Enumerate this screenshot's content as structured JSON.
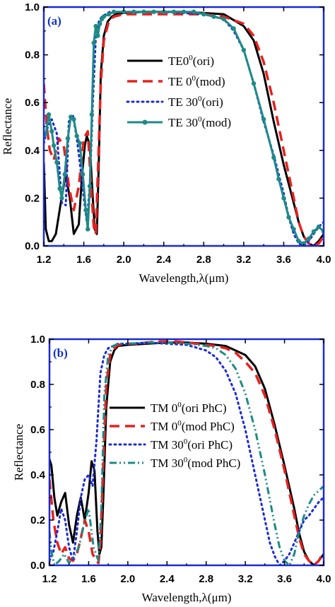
{
  "chart_data": [
    {
      "type": "line",
      "panel_label": "(a)",
      "xlabel": "Wavelength,λ(μm)",
      "ylabel": "Reflectance",
      "xlim": [
        1.2,
        4.0
      ],
      "ylim": [
        0.0,
        1.0
      ],
      "xticks": [
        "1.2",
        "1.6",
        "2.0",
        "2.4",
        "2.8",
        "3.2",
        "3.6",
        "4.0"
      ],
      "yticks": [
        "0.0",
        "0.2",
        "0.4",
        "0.6",
        "0.8",
        "1.0"
      ],
      "grid": false,
      "legend_position": "center-right",
      "frame_color": "#1a2ad8",
      "series": [
        {
          "name_main": "TE0",
          "name_sup": "0",
          "name_tail": "(ori)",
          "color": "#000000",
          "style": "solid",
          "marker": "none",
          "x": [
            1.2,
            1.22,
            1.25,
            1.28,
            1.32,
            1.37,
            1.42,
            1.46,
            1.5,
            1.55,
            1.58,
            1.61,
            1.63,
            1.66,
            1.69,
            1.71,
            1.73,
            1.75,
            1.77,
            1.8,
            1.84,
            1.88,
            1.92,
            2.0,
            2.2,
            2.4,
            2.6,
            2.8,
            3.0,
            3.2,
            3.3,
            3.4,
            3.5,
            3.6,
            3.7,
            3.75,
            3.8,
            3.85,
            3.9,
            3.95,
            4.0
          ],
          "y": [
            0.35,
            0.07,
            0.02,
            0.02,
            0.05,
            0.18,
            0.3,
            0.2,
            0.05,
            0.09,
            0.28,
            0.42,
            0.46,
            0.42,
            0.2,
            0.07,
            0.05,
            0.35,
            0.72,
            0.88,
            0.94,
            0.96,
            0.97,
            0.975,
            0.98,
            0.98,
            0.98,
            0.975,
            0.97,
            0.92,
            0.86,
            0.72,
            0.52,
            0.34,
            0.18,
            0.1,
            0.04,
            0.01,
            0.0,
            0.02,
            0.05
          ]
        },
        {
          "name_main": "TE 0",
          "name_sup": "0",
          "name_tail": "(mod)",
          "color": "#e82020",
          "style": "dashed",
          "marker": "none",
          "x": [
            1.2,
            1.23,
            1.26,
            1.3,
            1.35,
            1.4,
            1.45,
            1.5,
            1.55,
            1.6,
            1.64,
            1.68,
            1.7,
            1.72,
            1.74,
            1.77,
            1.8,
            1.85,
            1.9,
            2.0,
            2.2,
            2.4,
            2.6,
            2.8,
            3.0,
            3.2,
            3.3,
            3.4,
            3.5,
            3.6,
            3.7,
            3.75,
            3.8,
            3.85,
            3.9,
            3.95,
            4.0
          ],
          "y": [
            0.68,
            0.5,
            0.4,
            0.36,
            0.45,
            0.42,
            0.25,
            0.15,
            0.25,
            0.45,
            0.48,
            0.2,
            0.08,
            0.05,
            0.3,
            0.68,
            0.86,
            0.94,
            0.96,
            0.97,
            0.97,
            0.97,
            0.97,
            0.97,
            0.96,
            0.93,
            0.88,
            0.77,
            0.6,
            0.4,
            0.2,
            0.1,
            0.04,
            0.01,
            0.0,
            0.01,
            0.04
          ]
        },
        {
          "name_main": "TE 30",
          "name_sup": "0",
          "name_tail": "(ori)",
          "color": "#1a2ad8",
          "style": "dotted",
          "marker": "none",
          "x": [
            1.2,
            1.24,
            1.28,
            1.33,
            1.38,
            1.42,
            1.45,
            1.49,
            1.53,
            1.56,
            1.6,
            1.63,
            1.66,
            1.69,
            1.72,
            1.75,
            1.78,
            1.82,
            1.86,
            1.9,
            2.0,
            2.4,
            2.8,
            3.0,
            3.1,
            3.2,
            3.3,
            3.4,
            3.5,
            3.6,
            3.65,
            3.7,
            3.75,
            3.8,
            3.85,
            3.9,
            3.95,
            4.0
          ],
          "y": [
            0.43,
            0.5,
            0.53,
            0.47,
            0.18,
            0.17,
            0.52,
            0.55,
            0.45,
            0.35,
            0.2,
            0.1,
            0.25,
            0.6,
            0.87,
            0.94,
            0.96,
            0.97,
            0.98,
            0.98,
            0.98,
            0.98,
            0.97,
            0.95,
            0.9,
            0.82,
            0.68,
            0.52,
            0.38,
            0.22,
            0.12,
            0.05,
            0.01,
            0.0,
            0.02,
            0.05,
            0.08,
            0.1
          ]
        },
        {
          "name_main": "TE 30",
          "name_sup": "0",
          "name_tail": "(mod)",
          "color": "#1e8a86",
          "style": "solid",
          "marker": "circle",
          "x": [
            1.2,
            1.22,
            1.25,
            1.28,
            1.3,
            1.33,
            1.36,
            1.38,
            1.41,
            1.44,
            1.47,
            1.5,
            1.53,
            1.56,
            1.59,
            1.62,
            1.64,
            1.66,
            1.68,
            1.7,
            1.72,
            1.74,
            1.76,
            1.78,
            1.8,
            1.85,
            1.9,
            2.0,
            2.1,
            2.2,
            2.3,
            2.4,
            2.5,
            2.6,
            2.7,
            2.8,
            2.9,
            3.0,
            3.1,
            3.2,
            3.3,
            3.4,
            3.5,
            3.55,
            3.6,
            3.65,
            3.7,
            3.75,
            3.8,
            3.85,
            3.9,
            3.95,
            4.0
          ],
          "y": [
            0.46,
            0.47,
            0.55,
            0.48,
            0.42,
            0.35,
            0.24,
            0.2,
            0.3,
            0.45,
            0.54,
            0.53,
            0.46,
            0.43,
            0.3,
            0.15,
            0.07,
            0.25,
            0.55,
            0.85,
            0.92,
            0.88,
            0.93,
            0.95,
            0.96,
            0.97,
            0.98,
            0.98,
            0.98,
            0.98,
            0.98,
            0.98,
            0.98,
            0.98,
            0.98,
            0.97,
            0.96,
            0.95,
            0.91,
            0.82,
            0.68,
            0.53,
            0.37,
            0.28,
            0.2,
            0.12,
            0.07,
            0.02,
            0.01,
            0.03,
            0.06,
            0.08,
            0.06
          ]
        }
      ]
    },
    {
      "type": "line",
      "panel_label": "(b)",
      "xlabel": "Wavelength,λ(μm)",
      "ylabel": "Reflectance",
      "xlim": [
        1.2,
        4.0
      ],
      "ylim": [
        0.0,
        1.0
      ],
      "xticks": [
        "1.2",
        "1.6",
        "2.0",
        "2.4",
        "2.8",
        "3.2",
        "3.6",
        "4.0"
      ],
      "yticks": [
        "0.0",
        "0.2",
        "0.4",
        "0.6",
        "0.8",
        "1.0"
      ],
      "grid": false,
      "legend_position": "center-left",
      "frame_color": "#1a2ad8",
      "series": [
        {
          "name_main": "TM 0",
          "name_sup": "0",
          "name_tail": "(ori PhC)",
          "color": "#000000",
          "style": "solid",
          "marker": "none",
          "x": [
            1.2,
            1.22,
            1.25,
            1.28,
            1.32,
            1.36,
            1.4,
            1.44,
            1.48,
            1.52,
            1.56,
            1.6,
            1.63,
            1.66,
            1.69,
            1.71,
            1.73,
            1.75,
            1.78,
            1.82,
            1.86,
            1.9,
            2.0,
            2.2,
            2.4,
            2.6,
            2.8,
            3.0,
            3.2,
            3.3,
            3.4,
            3.5,
            3.6,
            3.7,
            3.75,
            3.8,
            3.85,
            3.9,
            3.95,
            4.0
          ],
          "y": [
            0.47,
            0.44,
            0.3,
            0.22,
            0.28,
            0.32,
            0.18,
            0.1,
            0.22,
            0.3,
            0.2,
            0.32,
            0.46,
            0.42,
            0.15,
            0.05,
            0.08,
            0.3,
            0.7,
            0.9,
            0.95,
            0.97,
            0.975,
            0.98,
            0.985,
            0.985,
            0.98,
            0.97,
            0.93,
            0.88,
            0.78,
            0.62,
            0.44,
            0.25,
            0.14,
            0.06,
            0.02,
            0.0,
            0.02,
            0.05
          ]
        },
        {
          "name_main": "TM 0",
          "name_sup": "0",
          "name_tail": "(mod PhC)",
          "color": "#e82020",
          "style": "dashed",
          "marker": "none",
          "x": [
            1.2,
            1.24,
            1.28,
            1.32,
            1.36,
            1.4,
            1.44,
            1.48,
            1.52,
            1.56,
            1.6,
            1.64,
            1.68,
            1.7,
            1.72,
            1.75,
            1.78,
            1.82,
            1.88,
            1.95,
            2.1,
            2.3,
            2.5,
            2.7,
            2.9,
            3.0,
            3.1,
            3.2,
            3.3,
            3.4,
            3.5,
            3.6,
            3.7,
            3.75,
            3.8,
            3.85,
            3.9,
            3.95,
            4.0
          ],
          "y": [
            0.38,
            0.2,
            0.1,
            0.05,
            0.08,
            0.03,
            0.02,
            0.05,
            0.12,
            0.2,
            0.15,
            0.05,
            0.02,
            0.01,
            0.1,
            0.45,
            0.8,
            0.93,
            0.97,
            0.98,
            0.98,
            0.99,
            0.99,
            0.98,
            0.97,
            0.96,
            0.94,
            0.9,
            0.85,
            0.75,
            0.6,
            0.42,
            0.22,
            0.12,
            0.05,
            0.02,
            0.0,
            0.02,
            0.06
          ]
        },
        {
          "name_main": "TM 30",
          "name_sup": "0",
          "name_tail": "(ori PhC)",
          "color": "#1a2ad8",
          "style": "dotted",
          "marker": "none",
          "x": [
            1.2,
            1.24,
            1.28,
            1.32,
            1.36,
            1.4,
            1.44,
            1.48,
            1.52,
            1.56,
            1.6,
            1.64,
            1.68,
            1.72,
            1.76,
            1.8,
            1.85,
            1.9,
            2.0,
            2.2,
            2.4,
            2.6,
            2.8,
            2.9,
            3.0,
            3.1,
            3.2,
            3.3,
            3.4,
            3.45,
            3.5,
            3.55,
            3.6,
            3.65,
            3.7,
            3.75,
            3.8,
            3.85,
            3.9,
            3.95,
            4.0
          ],
          "y": [
            0.02,
            0.06,
            0.15,
            0.25,
            0.2,
            0.08,
            0.02,
            0.15,
            0.3,
            0.38,
            0.4,
            0.35,
            0.55,
            0.85,
            0.93,
            0.96,
            0.97,
            0.98,
            0.98,
            0.985,
            0.98,
            0.975,
            0.95,
            0.92,
            0.86,
            0.76,
            0.6,
            0.4,
            0.2,
            0.1,
            0.04,
            0.0,
            0.02,
            0.05,
            0.1,
            0.15,
            0.2,
            0.22,
            0.25,
            0.28,
            0.3
          ]
        },
        {
          "name_main": "TM 30",
          "name_sup": "0",
          "name_tail": "(mod PhC)",
          "color": "#1e8a86",
          "style": "dashdotdot",
          "marker": "none",
          "x": [
            1.2,
            1.22,
            1.25,
            1.3,
            1.35,
            1.4,
            1.45,
            1.5,
            1.55,
            1.6,
            1.65,
            1.7,
            1.73,
            1.76,
            1.8,
            1.85,
            1.9,
            2.0,
            2.2,
            2.4,
            2.6,
            2.8,
            2.9,
            3.0,
            3.1,
            3.2,
            3.3,
            3.4,
            3.5,
            3.55,
            3.6,
            3.65,
            3.7,
            3.75,
            3.8,
            3.85,
            3.9,
            3.95,
            4.0
          ],
          "y": [
            0.15,
            0.06,
            0.0,
            0.02,
            0.05,
            0.01,
            0.04,
            0.08,
            0.18,
            0.25,
            0.08,
            0.02,
            0.25,
            0.75,
            0.93,
            0.97,
            0.98,
            0.98,
            0.985,
            0.985,
            0.98,
            0.97,
            0.96,
            0.93,
            0.87,
            0.76,
            0.6,
            0.4,
            0.18,
            0.08,
            0.02,
            0.0,
            0.05,
            0.15,
            0.22,
            0.27,
            0.31,
            0.33,
            0.35
          ]
        }
      ]
    }
  ]
}
